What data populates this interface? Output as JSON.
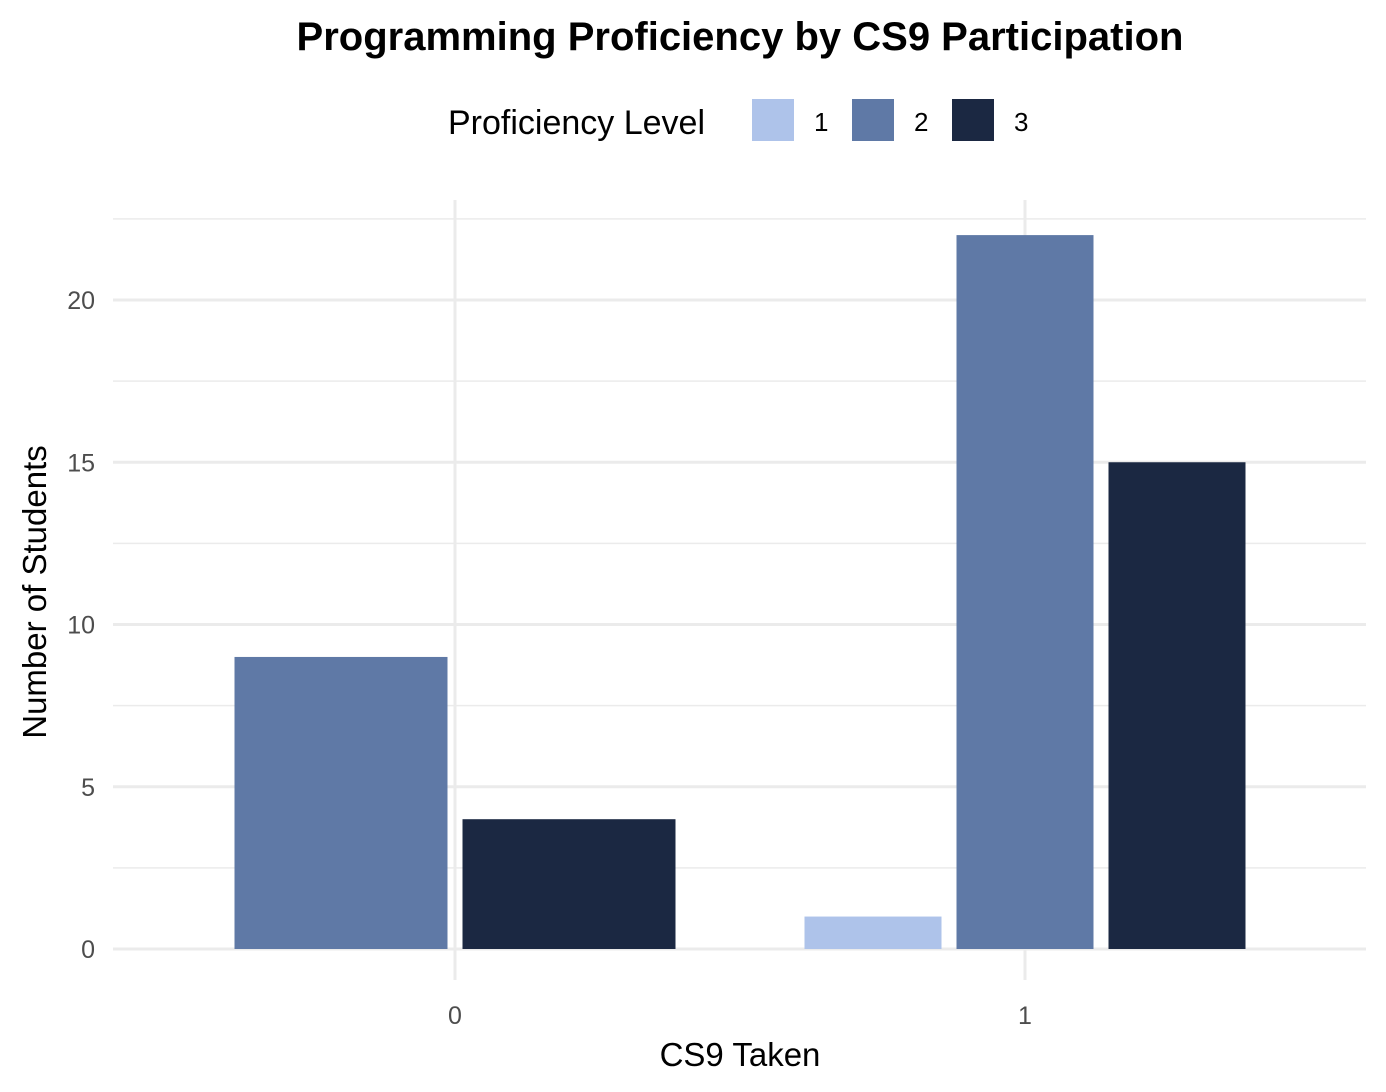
{
  "chart_data": {
    "type": "bar",
    "title": "Programming Proficiency by CS9 Participation",
    "xlabel": "CS9 Taken",
    "ylabel": "Number of Students",
    "legend_title": "Proficiency Level",
    "legend_position": "top",
    "categories": [
      "0",
      "1"
    ],
    "series": [
      {
        "name": "1",
        "color": "#aec3ea",
        "values": [
          0,
          1
        ]
      },
      {
        "name": "2",
        "color": "#5f79a6",
        "values": [
          9,
          22
        ]
      },
      {
        "name": "3",
        "color": "#1b2842",
        "values": [
          4,
          15
        ]
      }
    ],
    "ylim": [
      0,
      22.5
    ],
    "yticks": [
      0,
      5,
      10,
      15,
      20
    ],
    "grid": true
  }
}
